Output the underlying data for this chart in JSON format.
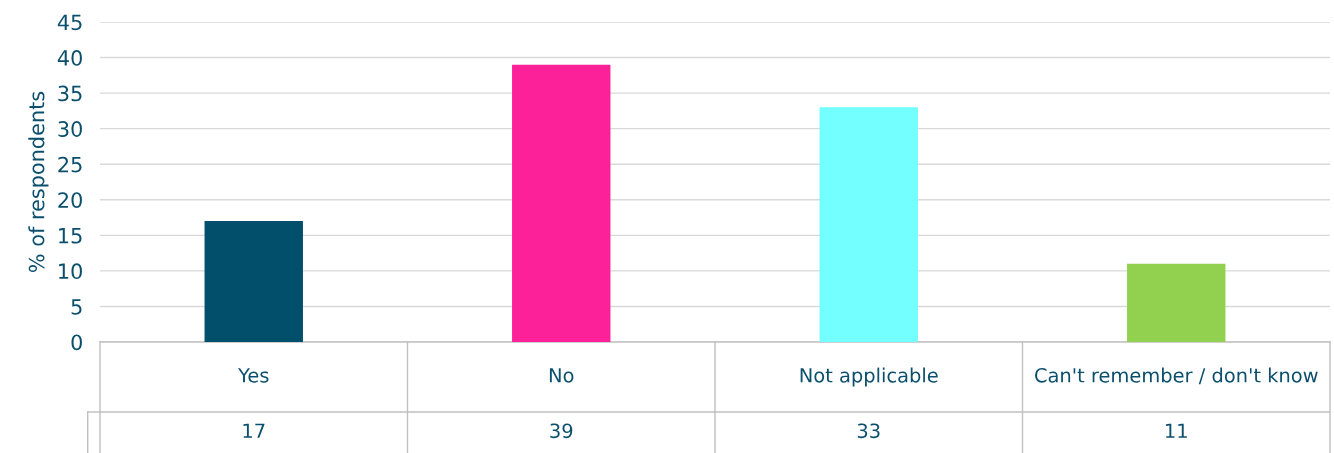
{
  "chart_data": {
    "type": "bar",
    "ylabel": "% of respondents",
    "categories": [
      "Yes",
      "No",
      "Not applicable",
      "Can't remember / don't know"
    ],
    "values": [
      17,
      39,
      33,
      11
    ],
    "colors": [
      "#024f6b",
      "#fc2199",
      "#73ffff",
      "#92d050"
    ],
    "ylim": [
      0,
      45
    ],
    "yticks": [
      0,
      5,
      10,
      15,
      20,
      25,
      30,
      35,
      40,
      45
    ],
    "grid": "y",
    "data_labels": true
  }
}
